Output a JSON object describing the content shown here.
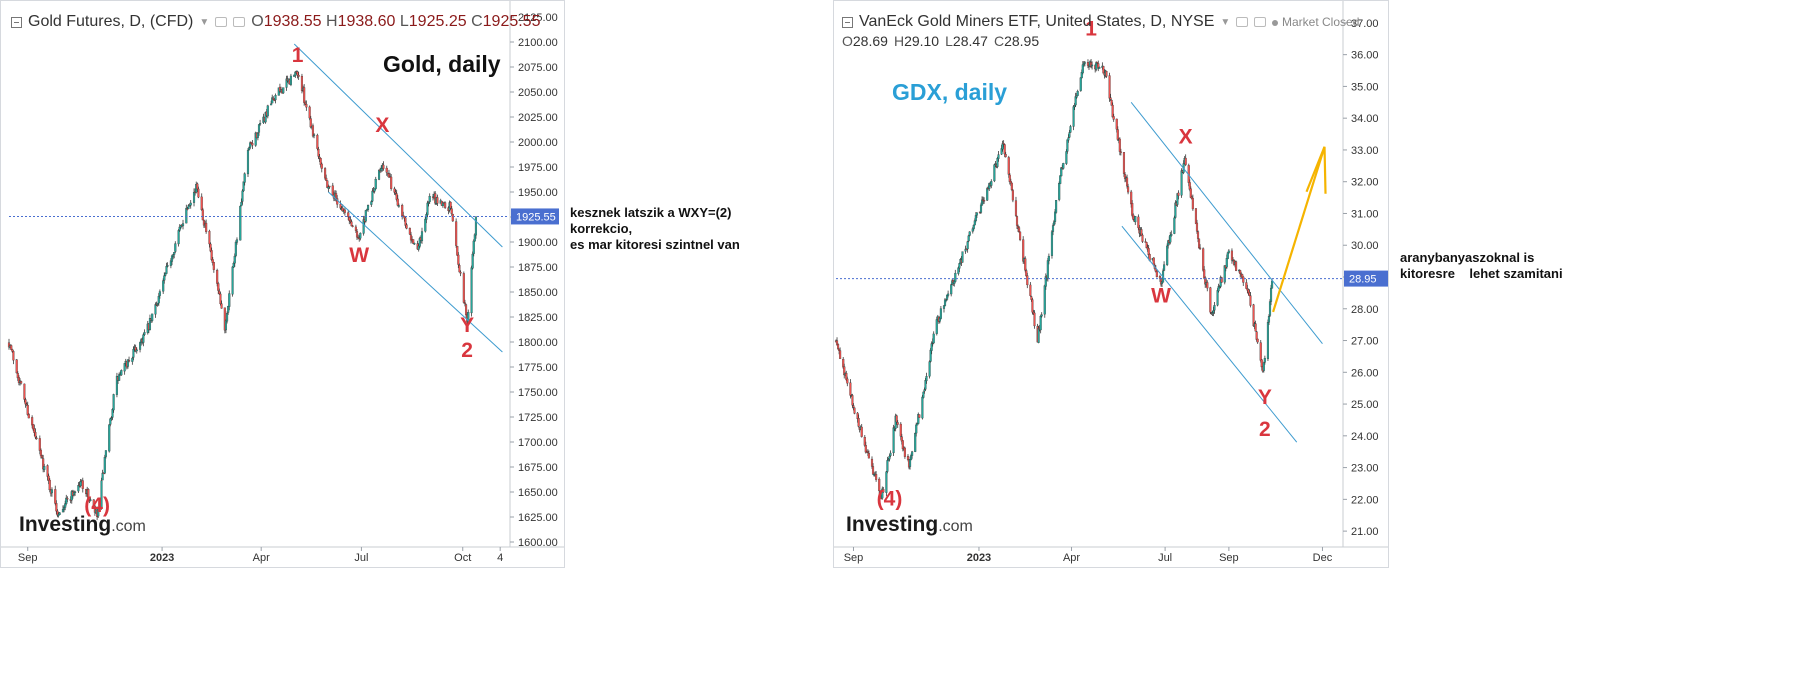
{
  "panels": [
    {
      "id": "gold",
      "header": {
        "title": "Gold Futures, D, (CFD)",
        "ohlc": [
          {
            "k": "O",
            "v": "1938.55"
          },
          {
            "k": "H",
            "v": "1938.60"
          },
          {
            "k": "L",
            "v": "1925.25"
          },
          {
            "k": "C",
            "v": "1925.55"
          }
        ]
      },
      "heading": "Gold, daily",
      "watermark": {
        "brand": "Investing",
        "domain": ".com"
      },
      "wave_labels": [
        "1",
        "X",
        "W",
        "Y",
        "2",
        "(4)"
      ],
      "price_tag": "1925.55",
      "y_ticks": [
        "2125.00",
        "2100.00",
        "2075.00",
        "2050.00",
        "2025.00",
        "2000.00",
        "1975.00",
        "1950.00",
        "1925.00",
        "1900.00",
        "1875.00",
        "1850.00",
        "1825.00",
        "1800.00",
        "1775.00",
        "1750.00",
        "1725.00",
        "1700.00",
        "1675.00",
        "1650.00",
        "1625.00",
        "1600.00"
      ],
      "x_ticks": [
        "Sep",
        "2023",
        "Apr",
        "Jul",
        "Oct",
        "4"
      ]
    },
    {
      "id": "gdx",
      "header": {
        "title": "VanEck Gold Miners ETF, United States, D, NYSE",
        "status": "Market Closed",
        "ohlc": [
          {
            "k": "O",
            "v": "28.69"
          },
          {
            "k": "H",
            "v": "29.10"
          },
          {
            "k": "L",
            "v": "28.47"
          },
          {
            "k": "C",
            "v": "28.95"
          }
        ]
      },
      "heading": "GDX, daily",
      "watermark": {
        "brand": "Investing",
        "domain": ".com"
      },
      "wave_labels": [
        "1",
        "X",
        "W",
        "Y",
        "2",
        "(4)"
      ],
      "price_tag": "28.95",
      "y_ticks": [
        "37.00",
        "36.00",
        "35.00",
        "34.00",
        "33.00",
        "32.00",
        "31.00",
        "30.00",
        "29.00",
        "28.00",
        "27.00",
        "26.00",
        "25.00",
        "24.00",
        "23.00",
        "22.00",
        "21.00"
      ],
      "x_ticks": [
        "Sep",
        "2023",
        "Apr",
        "Jul",
        "Sep",
        "Dec"
      ]
    }
  ],
  "notes": {
    "gold": [
      "kesznek latszik a WXY=(2)",
      "korrekcio,",
      "es mar kitoresi szintnel van"
    ],
    "gdx": [
      "aranybanyaszoknal is",
      "kitoresre    lehet szamitani"
    ]
  },
  "colors": {
    "up": "#26a69a",
    "down": "#ef5350",
    "wave_label": "#d9363e",
    "channel": "#3d9bcf",
    "gdx_heading": "#2a9fd6",
    "arrow": "#f5b400",
    "price_tag_bg": "#4a6fd0",
    "last_price_line": "#4a6fd0"
  },
  "chart_data": [
    {
      "type": "candlestick",
      "title": "Gold Futures, D, (CFD)",
      "x_ticks": [
        "Sep",
        "2023",
        "Apr",
        "Jul",
        "Oct",
        "4"
      ],
      "ylim": [
        1595,
        2135
      ],
      "last_price": 1925.55,
      "waypoints": [
        {
          "t": "2022-08-15",
          "v": 1800
        },
        {
          "t": "2022-09-05",
          "v": 1715
        },
        {
          "t": "2022-09-28",
          "v": 1630
        },
        {
          "t": "2022-10-20",
          "v": 1660
        },
        {
          "t": "2022-11-03",
          "v": 1625
        },
        {
          "t": "2022-11-20",
          "v": 1760
        },
        {
          "t": "2022-12-20",
          "v": 1815
        },
        {
          "t": "2023-01-25",
          "v": 1940
        },
        {
          "t": "2023-02-02",
          "v": 1955
        },
        {
          "t": "2023-02-27",
          "v": 1815
        },
        {
          "t": "2023-03-20",
          "v": 1990
        },
        {
          "t": "2023-04-13",
          "v": 2045
        },
        {
          "t": "2023-05-04",
          "v": 2070
        },
        {
          "t": "2023-05-30",
          "v": 1960
        },
        {
          "t": "2023-06-29",
          "v": 1905
        },
        {
          "t": "2023-07-20",
          "v": 1980
        },
        {
          "t": "2023-08-21",
          "v": 1890
        },
        {
          "t": "2023-09-01",
          "v": 1945
        },
        {
          "t": "2023-09-20",
          "v": 1935
        },
        {
          "t": "2023-10-05",
          "v": 1820
        },
        {
          "t": "2023-10-13",
          "v": 1925
        }
      ],
      "annotations": [
        {
          "label": "1",
          "t": "2023-05-04",
          "v": 2080
        },
        {
          "label": "X",
          "t": "2023-07-20",
          "v": 2010
        },
        {
          "label": "W",
          "t": "2023-06-29",
          "v": 1880
        },
        {
          "label": "Y",
          "t": "2023-10-05",
          "v": 1810
        },
        {
          "label": "2",
          "t": "2023-10-05",
          "v": 1785
        },
        {
          "label": "(4)",
          "t": "2022-11-03",
          "v": 1630
        }
      ],
      "channel": [
        {
          "from": {
            "t": "2023-05-01",
            "v": 2098
          },
          "to": {
            "t": "2023-11-06",
            "v": 1895
          }
        },
        {
          "from": {
            "t": "2023-06-01",
            "v": 1950
          },
          "to": {
            "t": "2023-11-06",
            "v": 1790
          }
        }
      ]
    },
    {
      "type": "candlestick",
      "title": "VanEck Gold Miners ETF, United States, D, NYSE",
      "x_ticks": [
        "Sep",
        "2023",
        "Apr",
        "Jul",
        "Sep",
        "Dec"
      ],
      "ylim": [
        20.5,
        37.5
      ],
      "last_price": 28.95,
      "waypoints": [
        {
          "t": "2022-08-15",
          "v": 27.0
        },
        {
          "t": "2022-09-05",
          "v": 24.5
        },
        {
          "t": "2022-09-28",
          "v": 22.0
        },
        {
          "t": "2022-10-12",
          "v": 24.5
        },
        {
          "t": "2022-10-25",
          "v": 23.0
        },
        {
          "t": "2022-11-20",
          "v": 27.5
        },
        {
          "t": "2022-12-20",
          "v": 30.0
        },
        {
          "t": "2023-01-25",
          "v": 33.2
        },
        {
          "t": "2023-02-27",
          "v": 27.0
        },
        {
          "t": "2023-03-20",
          "v": 32.0
        },
        {
          "t": "2023-04-13",
          "v": 35.8
        },
        {
          "t": "2023-05-03",
          "v": 35.5
        },
        {
          "t": "2023-05-30",
          "v": 31.0
        },
        {
          "t": "2023-06-27",
          "v": 28.8
        },
        {
          "t": "2023-07-20",
          "v": 32.7
        },
        {
          "t": "2023-08-15",
          "v": 27.8
        },
        {
          "t": "2023-09-01",
          "v": 29.8
        },
        {
          "t": "2023-09-20",
          "v": 28.5
        },
        {
          "t": "2023-10-04",
          "v": 25.9
        },
        {
          "t": "2023-10-13",
          "v": 28.9
        }
      ],
      "annotations": [
        {
          "label": "1",
          "t": "2023-04-20",
          "v": 36.6
        },
        {
          "label": "X",
          "t": "2023-07-21",
          "v": 33.2
        },
        {
          "label": "W",
          "t": "2023-06-27",
          "v": 28.2
        },
        {
          "label": "Y",
          "t": "2023-10-06",
          "v": 25.0
        },
        {
          "label": "2",
          "t": "2023-10-06",
          "v": 24.0
        },
        {
          "label": "(4)",
          "t": "2022-10-06",
          "v": 21.8
        }
      ],
      "channel": [
        {
          "from": {
            "t": "2023-05-29",
            "v": 34.5
          },
          "to": {
            "t": "2023-12-01",
            "v": 26.9
          }
        },
        {
          "from": {
            "t": "2023-05-20",
            "v": 30.6
          },
          "to": {
            "t": "2023-11-06",
            "v": 23.8
          }
        }
      ],
      "arrow": {
        "from": {
          "t": "2023-10-14",
          "v": 27.9
        },
        "to": {
          "t": "2023-12-03",
          "v": 33.1
        }
      }
    }
  ]
}
